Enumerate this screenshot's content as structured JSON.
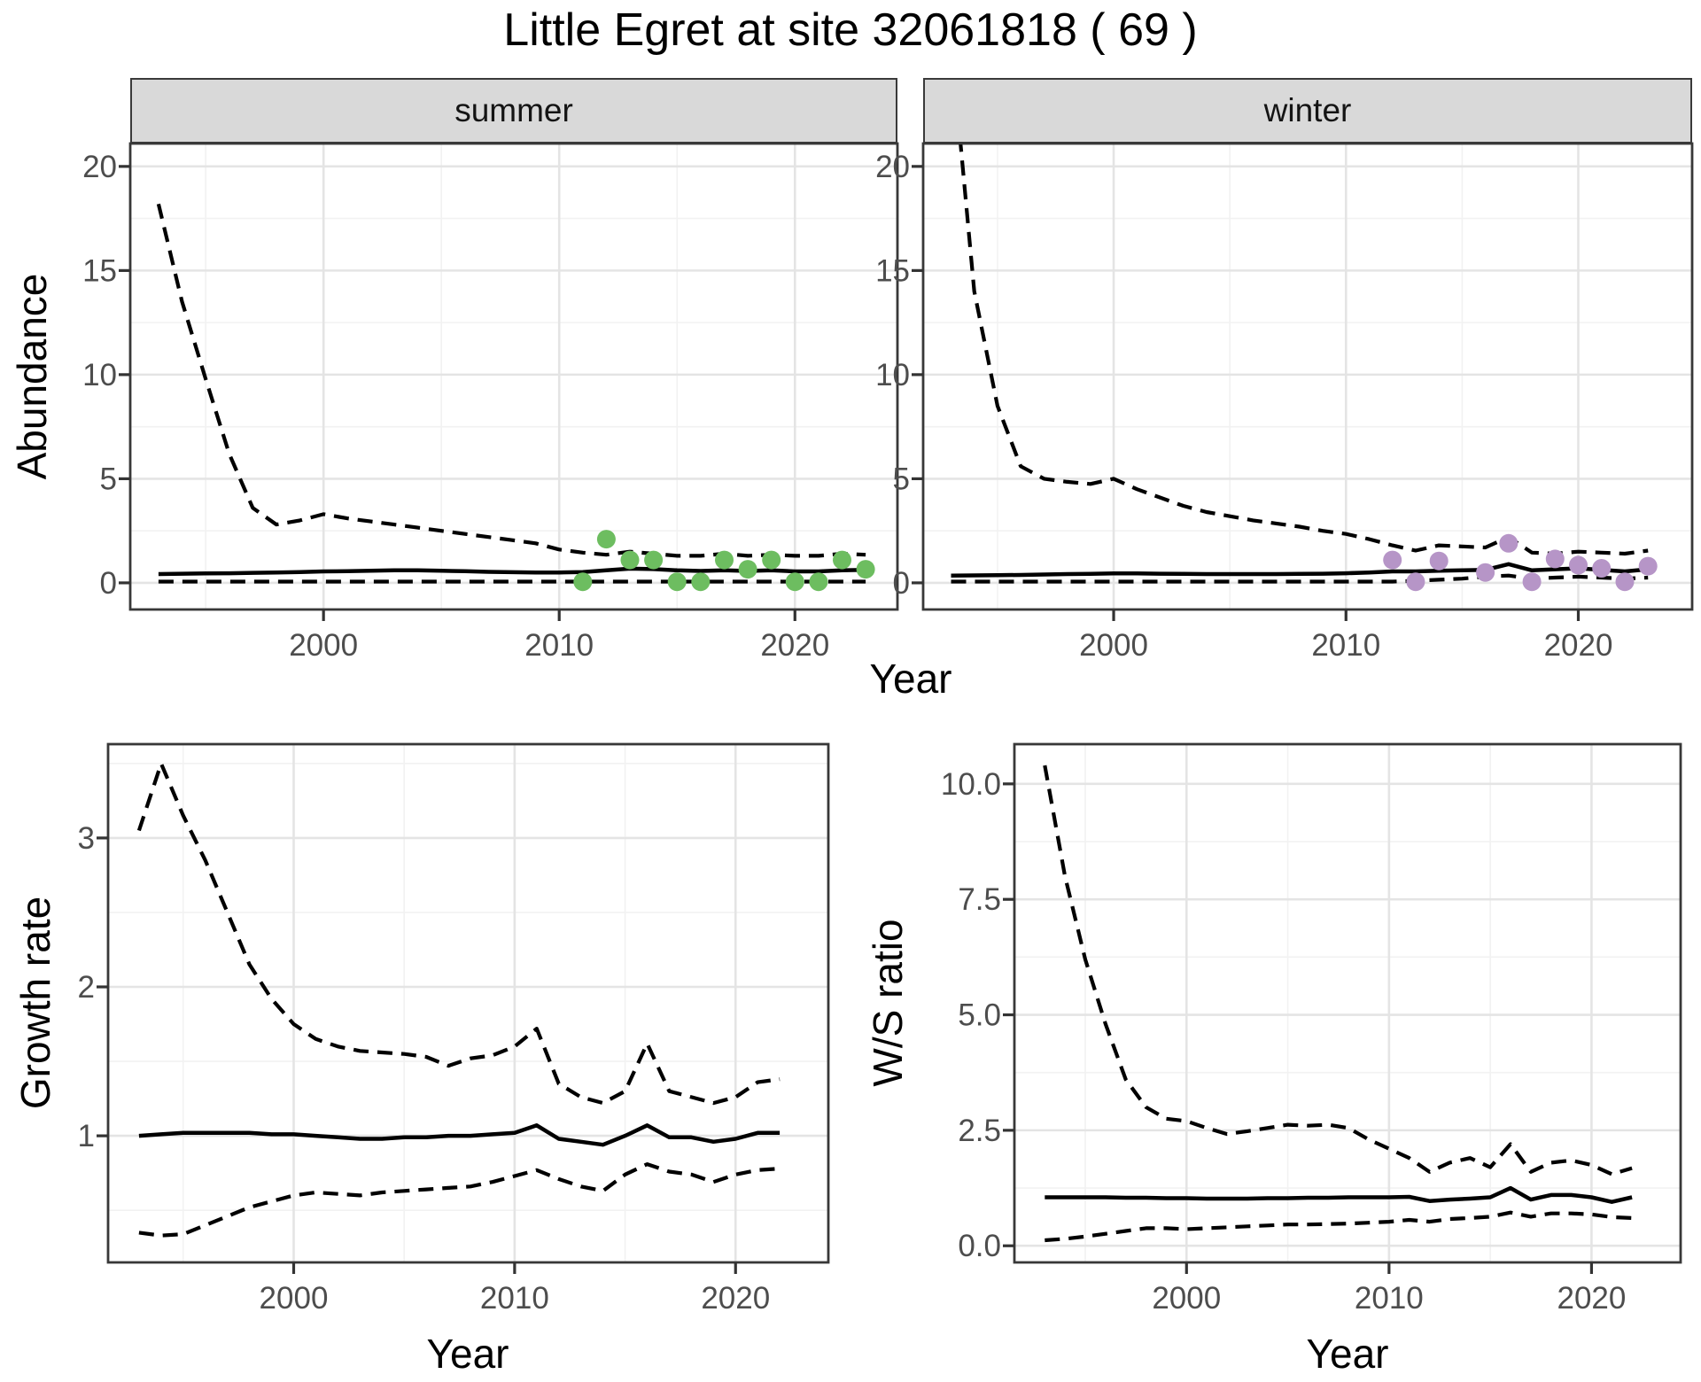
{
  "title": "Little Egret at site 32061818 ( 69 )",
  "facets": {
    "summer": "summer",
    "winter": "winter"
  },
  "axis_titles": {
    "y_abundance": "Abundance",
    "y_growth": "Growth rate",
    "y_ws": "W/S ratio",
    "x_year": "Year"
  },
  "colors": {
    "summer_points": "#6DBD60",
    "winter_points": "#B695C7",
    "line": "#000000",
    "grid_major": "#E4E4E4",
    "grid_minor": "#F2F2F2",
    "panel_border": "#383838",
    "strip_fill": "#D9D9D9",
    "tick_label": "#4D4D4D",
    "tick_mark": "#333333"
  },
  "chart_data": [
    {
      "id": "abundance_summer",
      "type": "line",
      "facet": "summer",
      "xlabel": "Year",
      "ylabel": "Abundance",
      "xlim": [
        1991.8,
        2024.35
      ],
      "ylim": [
        -1.28,
        21.1
      ],
      "x_ticks": [
        2000,
        2010,
        2020
      ],
      "x_tick_labels": [
        "2000",
        "2010",
        "2020"
      ],
      "x_minor": [
        1995,
        2005,
        2015
      ],
      "y_ticks": [
        0,
        5,
        10,
        15,
        20
      ],
      "y_tick_labels": [
        "0",
        "5",
        "10",
        "15",
        "20"
      ],
      "y_minor": [
        2.5,
        7.5,
        12.5,
        17.5
      ],
      "x": [
        1993,
        1994,
        1995,
        1996,
        1997,
        1998,
        1999,
        2000,
        2001,
        2002,
        2003,
        2004,
        2005,
        2006,
        2007,
        2008,
        2009,
        2010,
        2011,
        2012,
        2013,
        2014,
        2015,
        2016,
        2017,
        2018,
        2019,
        2020,
        2021,
        2022,
        2023
      ],
      "series": [
        {
          "name": "upper_95ci",
          "style": "dashed",
          "values": [
            18.2,
            13.5,
            9.8,
            6.2,
            3.6,
            2.8,
            3.0,
            3.3,
            3.1,
            2.95,
            2.8,
            2.65,
            2.5,
            2.35,
            2.2,
            2.05,
            1.9,
            1.6,
            1.45,
            1.35,
            1.5,
            1.4,
            1.3,
            1.3,
            1.4,
            1.3,
            1.35,
            1.3,
            1.3,
            1.4,
            1.35
          ]
        },
        {
          "name": "estimate",
          "style": "solid",
          "values": [
            0.42,
            0.44,
            0.45,
            0.46,
            0.48,
            0.5,
            0.52,
            0.55,
            0.56,
            0.58,
            0.6,
            0.6,
            0.58,
            0.56,
            0.53,
            0.51,
            0.5,
            0.5,
            0.52,
            0.6,
            0.68,
            0.66,
            0.6,
            0.57,
            0.6,
            0.57,
            0.6,
            0.55,
            0.55,
            0.6,
            0.62
          ]
        },
        {
          "name": "lower_95ci",
          "style": "dashed",
          "values": [
            0.06,
            0.06,
            0.06,
            0.06,
            0.06,
            0.06,
            0.06,
            0.06,
            0.06,
            0.06,
            0.06,
            0.06,
            0.06,
            0.06,
            0.06,
            0.06,
            0.06,
            0.06,
            0.06,
            0.06,
            0.06,
            0.06,
            0.06,
            0.06,
            0.06,
            0.06,
            0.06,
            0.06,
            0.06,
            0.06,
            0.06
          ]
        }
      ],
      "points": {
        "name": "observed_counts",
        "color_key": "summer_points",
        "xy": [
          [
            2011,
            0.05
          ],
          [
            2012,
            2.1
          ],
          [
            2013,
            1.1
          ],
          [
            2014,
            1.1
          ],
          [
            2015,
            0.05
          ],
          [
            2016,
            0.05
          ],
          [
            2017,
            1.1
          ],
          [
            2018,
            0.65
          ],
          [
            2019,
            1.1
          ],
          [
            2020,
            0.05
          ],
          [
            2021,
            0.05
          ],
          [
            2022,
            1.1
          ],
          [
            2023,
            0.65
          ]
        ]
      }
    },
    {
      "id": "abundance_winter",
      "type": "line",
      "facet": "winter",
      "xlabel": "Year",
      "ylabel": "Abundance",
      "xlim": [
        1991.8,
        2024.9
      ],
      "ylim": [
        -1.28,
        21.1
      ],
      "x_ticks": [
        2000,
        2010,
        2020
      ],
      "x_tick_labels": [
        "2000",
        "2010",
        "2020"
      ],
      "x_minor": [
        1995,
        2005,
        2015
      ],
      "y_ticks": [
        0,
        5,
        10,
        15,
        20
      ],
      "y_tick_labels": [
        "0",
        "5",
        "10",
        "15",
        "20"
      ],
      "y_minor": [
        2.5,
        7.5,
        12.5,
        17.5
      ],
      "x": [
        1993,
        1994,
        1995,
        1996,
        1997,
        1998,
        1999,
        2000,
        2001,
        2002,
        2003,
        2004,
        2005,
        2006,
        2007,
        2008,
        2009,
        2010,
        2011,
        2012,
        2013,
        2014,
        2015,
        2016,
        2017,
        2018,
        2019,
        2020,
        2021,
        2022,
        2023
      ],
      "series": [
        {
          "name": "upper_95ci",
          "style": "dashed",
          "values": [
            26,
            14,
            8.5,
            5.6,
            5.0,
            4.85,
            4.75,
            5.0,
            4.5,
            4.1,
            3.7,
            3.4,
            3.2,
            3.0,
            2.85,
            2.7,
            2.5,
            2.35,
            2.1,
            1.8,
            1.55,
            1.8,
            1.75,
            1.7,
            2.2,
            1.45,
            1.4,
            1.5,
            1.45,
            1.4,
            1.55
          ]
        },
        {
          "name": "estimate",
          "style": "solid",
          "values": [
            0.35,
            0.36,
            0.37,
            0.38,
            0.4,
            0.42,
            0.43,
            0.45,
            0.45,
            0.44,
            0.43,
            0.42,
            0.42,
            0.42,
            0.42,
            0.43,
            0.44,
            0.46,
            0.5,
            0.55,
            0.55,
            0.58,
            0.6,
            0.62,
            0.9,
            0.6,
            0.65,
            0.7,
            0.62,
            0.55,
            0.65
          ]
        },
        {
          "name": "lower_95ci",
          "style": "dashed",
          "values": [
            0.06,
            0.06,
            0.06,
            0.06,
            0.06,
            0.06,
            0.06,
            0.06,
            0.06,
            0.06,
            0.06,
            0.06,
            0.06,
            0.06,
            0.06,
            0.06,
            0.06,
            0.06,
            0.06,
            0.06,
            0.1,
            0.15,
            0.2,
            0.3,
            0.35,
            0.2,
            0.25,
            0.3,
            0.25,
            0.2,
            0.25
          ]
        }
      ],
      "points": {
        "name": "observed_counts",
        "color_key": "winter_points",
        "xy": [
          [
            2012,
            1.1
          ],
          [
            2013,
            0.05
          ],
          [
            2014,
            1.05
          ],
          [
            2016,
            0.5
          ],
          [
            2017,
            1.9
          ],
          [
            2018,
            0.05
          ],
          [
            2019,
            1.15
          ],
          [
            2020,
            0.85
          ],
          [
            2021,
            0.7
          ],
          [
            2022,
            0.05
          ],
          [
            2023,
            0.8
          ]
        ]
      }
    },
    {
      "id": "growth_rate",
      "type": "line",
      "xlabel": "Year",
      "ylabel": "Growth rate",
      "xlim": [
        1991.6,
        2024.2
      ],
      "ylim": [
        0.15,
        3.63
      ],
      "x_ticks": [
        2000,
        2010,
        2020
      ],
      "x_tick_labels": [
        "2000",
        "2010",
        "2020"
      ],
      "x_minor": [
        1995,
        2005,
        2015
      ],
      "y_ticks": [
        1,
        2,
        3
      ],
      "y_tick_labels": [
        "1",
        "2",
        "3"
      ],
      "y_minor": [
        0.5,
        1.5,
        2.5,
        3.5
      ],
      "x": [
        1993,
        1994,
        1995,
        1996,
        1997,
        1998,
        1999,
        2000,
        2001,
        2002,
        2003,
        2004,
        2005,
        2006,
        2007,
        2008,
        2009,
        2010,
        2011,
        2012,
        2013,
        2014,
        2015,
        2016,
        2017,
        2018,
        2019,
        2020,
        2021,
        2022
      ],
      "series": [
        {
          "name": "upper_95ci",
          "style": "dashed",
          "values": [
            3.05,
            3.5,
            3.15,
            2.85,
            2.5,
            2.15,
            1.92,
            1.75,
            1.65,
            1.6,
            1.57,
            1.56,
            1.55,
            1.53,
            1.47,
            1.52,
            1.54,
            1.6,
            1.72,
            1.35,
            1.26,
            1.22,
            1.3,
            1.62,
            1.3,
            1.26,
            1.22,
            1.26,
            1.36,
            1.38
          ]
        },
        {
          "name": "estimate",
          "style": "solid",
          "values": [
            1.0,
            1.01,
            1.02,
            1.02,
            1.02,
            1.02,
            1.01,
            1.01,
            1.0,
            0.99,
            0.98,
            0.98,
            0.99,
            0.99,
            1.0,
            1.0,
            1.01,
            1.02,
            1.07,
            0.98,
            0.96,
            0.94,
            1.0,
            1.07,
            0.99,
            0.99,
            0.96,
            0.98,
            1.02,
            1.02
          ]
        },
        {
          "name": "lower_95ci",
          "style": "dashed",
          "values": [
            0.35,
            0.33,
            0.34,
            0.4,
            0.46,
            0.52,
            0.56,
            0.6,
            0.62,
            0.61,
            0.6,
            0.62,
            0.63,
            0.64,
            0.65,
            0.66,
            0.69,
            0.73,
            0.77,
            0.71,
            0.66,
            0.63,
            0.74,
            0.81,
            0.76,
            0.74,
            0.69,
            0.74,
            0.77,
            0.78
          ]
        }
      ]
    },
    {
      "id": "ws_ratio",
      "type": "line",
      "xlabel": "Year",
      "ylabel": "W/S ratio",
      "xlim": [
        1991.5,
        2024.4
      ],
      "ylim": [
        -0.36,
        10.86
      ],
      "x_ticks": [
        2000,
        2010,
        2020
      ],
      "x_tick_labels": [
        "2000",
        "2010",
        "2020"
      ],
      "x_minor": [
        1995,
        2005,
        2015
      ],
      "y_ticks": [
        0,
        2.5,
        5,
        7.5,
        10
      ],
      "y_tick_labels": [
        "0.0",
        "2.5",
        "5.0",
        "7.5",
        "10.0"
      ],
      "y_minor": [
        1.25,
        3.75,
        6.25,
        8.75
      ],
      "x": [
        1993,
        1994,
        1995,
        1996,
        1997,
        1998,
        1999,
        2000,
        2001,
        2002,
        2003,
        2004,
        2005,
        2006,
        2007,
        2008,
        2009,
        2010,
        2011,
        2012,
        2013,
        2014,
        2015,
        2016,
        2017,
        2018,
        2019,
        2020,
        2021,
        2022
      ],
      "series": [
        {
          "name": "upper_95ci",
          "style": "dashed",
          "values": [
            10.4,
            8.0,
            6.2,
            4.8,
            3.6,
            3.0,
            2.75,
            2.7,
            2.55,
            2.42,
            2.48,
            2.55,
            2.62,
            2.6,
            2.62,
            2.55,
            2.3,
            2.1,
            1.9,
            1.6,
            1.8,
            1.9,
            1.7,
            2.2,
            1.6,
            1.8,
            1.85,
            1.75,
            1.55,
            1.68
          ]
        },
        {
          "name": "estimate",
          "style": "solid",
          "values": [
            1.05,
            1.05,
            1.05,
            1.05,
            1.04,
            1.04,
            1.03,
            1.03,
            1.02,
            1.02,
            1.02,
            1.03,
            1.03,
            1.04,
            1.04,
            1.05,
            1.05,
            1.05,
            1.06,
            0.97,
            1.0,
            1.02,
            1.05,
            1.25,
            1.0,
            1.1,
            1.1,
            1.05,
            0.95,
            1.05
          ]
        },
        {
          "name": "lower_95ci",
          "style": "dashed",
          "values": [
            0.12,
            0.15,
            0.2,
            0.26,
            0.32,
            0.38,
            0.38,
            0.36,
            0.38,
            0.4,
            0.42,
            0.44,
            0.46,
            0.46,
            0.47,
            0.48,
            0.5,
            0.52,
            0.56,
            0.52,
            0.58,
            0.6,
            0.63,
            0.72,
            0.63,
            0.7,
            0.7,
            0.68,
            0.62,
            0.6
          ]
        }
      ]
    }
  ]
}
